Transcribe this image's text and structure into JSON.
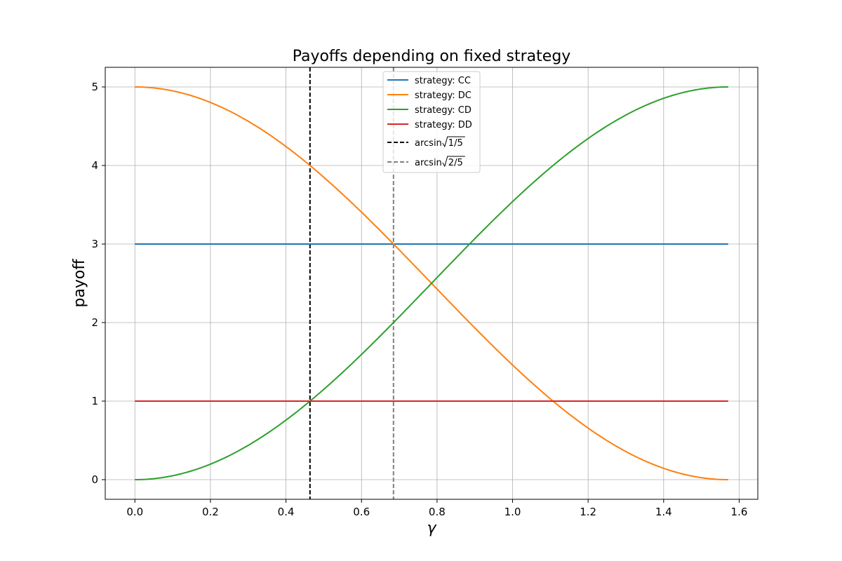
{
  "chart_data": {
    "type": "line",
    "title": "Payoffs depending on fixed strategy",
    "xlabel": "γ",
    "ylabel": "payoff",
    "xlim": [
      -0.0785,
      1.6493
    ],
    "ylim": [
      -0.25,
      5.25
    ],
    "xticks": [
      0.0,
      0.2,
      0.4,
      0.6,
      0.8,
      1.0,
      1.2,
      1.4,
      1.6
    ],
    "xtick_labels": [
      "0.0",
      "0.2",
      "0.4",
      "0.6",
      "0.8",
      "1.0",
      "1.2",
      "1.4",
      "1.6"
    ],
    "yticks": [
      0,
      1,
      2,
      3,
      4,
      5
    ],
    "ytick_labels": [
      "0",
      "1",
      "2",
      "3",
      "4",
      "5"
    ],
    "grid": true,
    "legend_position": "top-center",
    "x_domain": [
      0,
      1.5708
    ],
    "series": [
      {
        "name": "strategy: CC",
        "color": "#1f77b4",
        "formula": "3",
        "style": "solid"
      },
      {
        "name": "strategy: DC",
        "color": "#ff7f0e",
        "formula": "5cos^2(x)",
        "style": "solid"
      },
      {
        "name": "strategy: CD",
        "color": "#2ca02c",
        "formula": "5sin^2(x)",
        "style": "solid"
      },
      {
        "name": "strategy: DD",
        "color": "#d62728",
        "formula": "1",
        "style": "solid"
      }
    ],
    "vlines": [
      {
        "name_prefix": "arcsin",
        "radicand": "1/5",
        "x": 0.4636,
        "color": "#000000",
        "style": "dashed"
      },
      {
        "name_prefix": "arcsin",
        "radicand": "2/5",
        "x": 0.6847,
        "color": "#808080",
        "style": "dashed"
      }
    ]
  }
}
